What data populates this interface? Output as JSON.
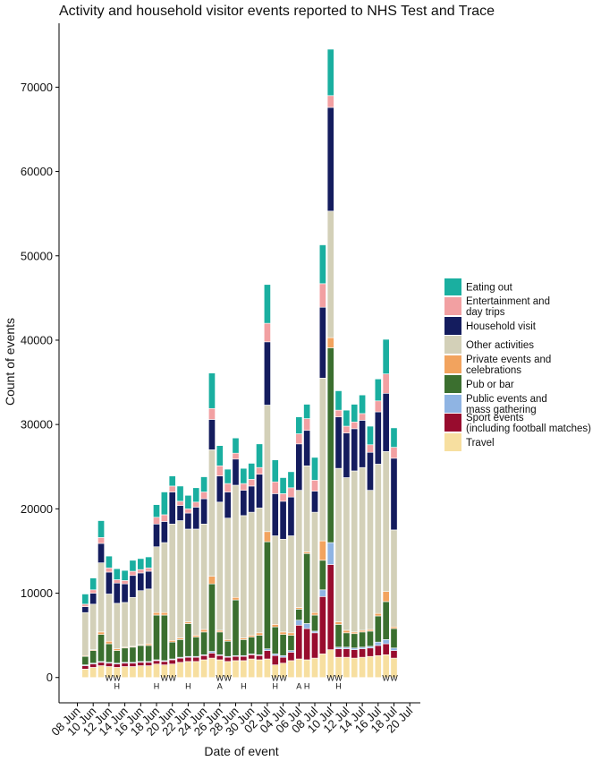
{
  "chart_data": {
    "type": "bar",
    "stacked": true,
    "title": "Activity and household visitor events reported to NHS Test and Trace",
    "xlabel": "Date of event",
    "ylabel": "Count of events",
    "ylim": [
      -3000,
      78000
    ],
    "y_ticks": [
      0,
      10000,
      20000,
      30000,
      40000,
      50000,
      60000,
      70000
    ],
    "grid": false,
    "legend_position": "right",
    "x_tick_labels": [
      "08 Jun",
      "10 Jun",
      "12 Jun",
      "14 Jun",
      "16 Jun",
      "18 Jun",
      "20 Jun",
      "22 Jun",
      "24 Jun",
      "26 Jun",
      "28 Jun",
      "30 Jun",
      "02 Jul",
      "04 Jul",
      "06 Jul",
      "08 Jul",
      "10 Jul",
      "12 Jul",
      "14 Jul",
      "16 Jul",
      "18 Jul",
      "20 Jul"
    ],
    "categories": [
      "09 Jun",
      "10 Jun",
      "11 Jun",
      "12 Jun",
      "13 Jun",
      "14 Jun",
      "15 Jun",
      "16 Jun",
      "17 Jun",
      "18 Jun",
      "19 Jun",
      "20 Jun",
      "21 Jun",
      "22 Jun",
      "23 Jun",
      "24 Jun",
      "25 Jun",
      "26 Jun",
      "27 Jun",
      "28 Jun",
      "29 Jun",
      "30 Jun",
      "01 Jul",
      "02 Jul",
      "03 Jul",
      "04 Jul",
      "05 Jul",
      "06 Jul",
      "07 Jul",
      "08 Jul",
      "09 Jul",
      "10 Jul",
      "11 Jul",
      "12 Jul",
      "13 Jul",
      "14 Jul",
      "15 Jul",
      "16 Jul",
      "17 Jul",
      "18 Jul"
    ],
    "series": [
      {
        "name": "Travel",
        "color": "#f7dfa0",
        "values": [
          1000,
          1200,
          1400,
          1300,
          1200,
          1300,
          1300,
          1400,
          1400,
          1600,
          1500,
          1600,
          1800,
          1900,
          1900,
          2100,
          2300,
          2100,
          1900,
          2000,
          2000,
          2200,
          2100,
          2200,
          1500,
          1700,
          2000,
          2200,
          2100,
          2300,
          2800,
          3300,
          2400,
          2400,
          2300,
          2400,
          2500,
          2600,
          2700,
          2300
        ]
      },
      {
        "name": "Sport events\n(including football matches)",
        "color": "#980c2e",
        "values": [
          400,
          400,
          400,
          400,
          400,
          400,
          400,
          400,
          400,
          400,
          400,
          500,
          500,
          500,
          500,
          500,
          600,
          500,
          500,
          500,
          500,
          500,
          500,
          1000,
          1100,
          700,
          1000,
          4000,
          3700,
          3000,
          6800,
          10100,
          1000,
          1000,
          1000,
          1000,
          1000,
          1200,
          1300,
          900
        ]
      },
      {
        "name": "Public events and\nmass gathering",
        "color": "#8fb4e3",
        "values": [
          100,
          100,
          100,
          100,
          100,
          100,
          100,
          100,
          100,
          100,
          100,
          100,
          100,
          100,
          100,
          100,
          200,
          100,
          100,
          100,
          100,
          100,
          100,
          200,
          200,
          200,
          200,
          600,
          600,
          200,
          800,
          2600,
          200,
          200,
          200,
          200,
          200,
          400,
          500,
          300
        ]
      },
      {
        "name": "Pub or bar",
        "color": "#3b6f2f",
        "values": [
          1000,
          1500,
          3200,
          2200,
          1500,
          1700,
          1800,
          1900,
          1900,
          5300,
          5400,
          2000,
          2100,
          3900,
          2300,
          2700,
          8000,
          2700,
          1800,
          6600,
          1900,
          2000,
          2300,
          12700,
          3200,
          2500,
          1800,
          1300,
          8300,
          1900,
          3500,
          23100,
          2700,
          1700,
          1700,
          1800,
          1800,
          3100,
          4500,
          2300
        ]
      },
      {
        "name": "Private events and\ncelebrations",
        "color": "#f2a35e",
        "values": [
          100,
          100,
          300,
          300,
          200,
          100,
          100,
          100,
          200,
          300,
          300,
          200,
          200,
          200,
          200,
          300,
          900,
          200,
          200,
          300,
          200,
          200,
          300,
          1200,
          300,
          300,
          300,
          200,
          200,
          300,
          2300,
          1200,
          300,
          300,
          200,
          200,
          200,
          300,
          1200,
          200
        ]
      },
      {
        "name": "Other activities",
        "color": "#d3d0b8",
        "values": [
          5100,
          5400,
          8200,
          5600,
          5400,
          5300,
          5800,
          6400,
          6500,
          7800,
          8300,
          13800,
          13900,
          11000,
          12600,
          12500,
          15000,
          15200,
          14400,
          13300,
          14500,
          14600,
          14800,
          15000,
          10500,
          11000,
          11500,
          13900,
          10200,
          11900,
          19300,
          15000,
          18200,
          18100,
          19100,
          19300,
          16500,
          17700,
          16600,
          11500
        ]
      },
      {
        "name": "Household visit",
        "color": "#141c5e",
        "values": [
          700,
          1300,
          2300,
          2600,
          2400,
          2200,
          2600,
          2100,
          2100,
          2700,
          2500,
          3800,
          1800,
          1900,
          2600,
          3000,
          3600,
          3100,
          3100,
          3100,
          3000,
          3100,
          4000,
          7500,
          5000,
          4500,
          4600,
          5500,
          4200,
          2500,
          8400,
          12300,
          6100,
          5300,
          5000,
          5600,
          4500,
          6200,
          6900,
          8500
        ]
      },
      {
        "name": "Entertainment and\nday trips",
        "color": "#f2a0a2",
        "values": [
          300,
          400,
          700,
          500,
          400,
          400,
          500,
          400,
          400,
          800,
          800,
          700,
          500,
          500,
          600,
          800,
          1300,
          1200,
          1000,
          700,
          800,
          800,
          800,
          2200,
          1400,
          900,
          1100,
          1200,
          1400,
          1300,
          2800,
          1400,
          800,
          800,
          800,
          800,
          900,
          1300,
          2300,
          1300
        ]
      },
      {
        "name": "Eating out",
        "color": "#1aafa0",
        "values": [
          1200,
          1400,
          2000,
          1400,
          1300,
          1200,
          1300,
          1300,
          1300,
          1500,
          2700,
          1200,
          1800,
          1600,
          1700,
          1800,
          4200,
          2400,
          1700,
          1800,
          1800,
          1900,
          2800,
          4600,
          2600,
          1900,
          1900,
          2000,
          1700,
          2700,
          4600,
          5500,
          2300,
          1900,
          2100,
          2200,
          2200,
          2600,
          4100,
          2300
        ]
      }
    ],
    "bar_markers": {
      "W": [
        "12 Jun",
        "13 Jun",
        "19 Jun",
        "20 Jun",
        "26 Jun",
        "27 Jun",
        "03 Jul",
        "04 Jul",
        "10 Jul",
        "11 Jul",
        "17 Jul",
        "18 Jul"
      ],
      "H": [
        "13 Jun",
        "18 Jun",
        "22 Jun",
        "29 Jun",
        "03 Jul",
        "07 Jul",
        "11 Jul"
      ],
      "A": [
        "26 Jun",
        "06 Jul"
      ]
    },
    "legend_order": [
      "Eating out",
      "Entertainment and\nday trips",
      "Household visit",
      "Other activities",
      "Private events and\ncelebrations",
      "Pub or bar",
      "Public events and\nmass gathering",
      "Sport events\n(including football matches)",
      "Travel"
    ]
  }
}
